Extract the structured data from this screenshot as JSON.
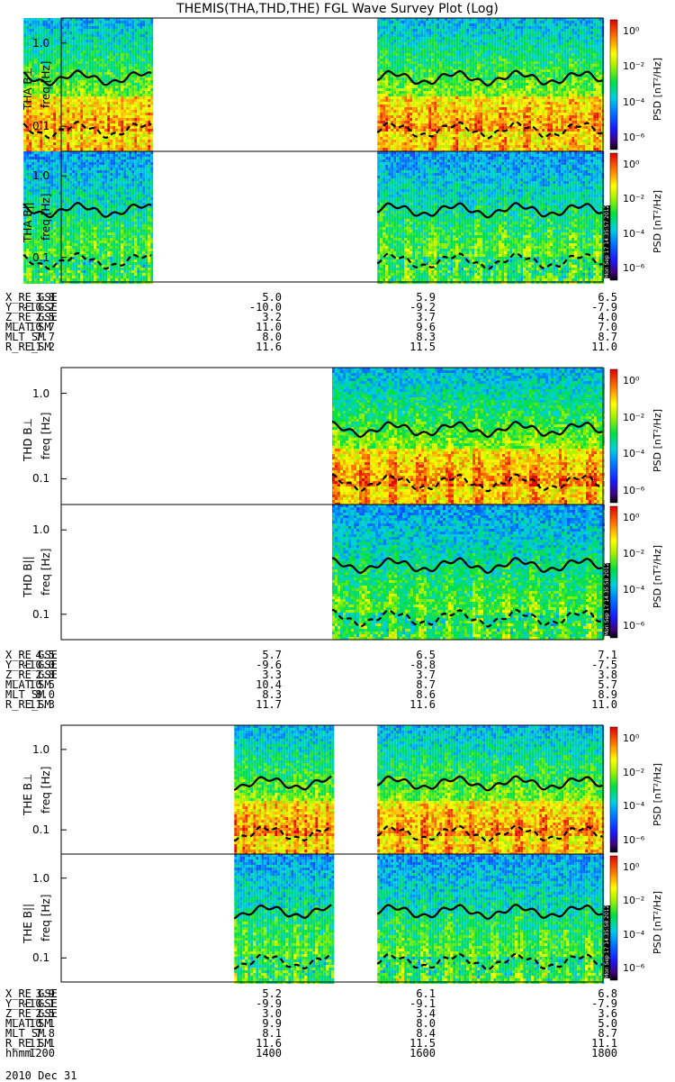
{
  "title": "THEMIS(THA,THD,THE) FGL Wave Survey Plot (Log)",
  "colorbar": {
    "label": "PSD [nT²/Hz]",
    "ticks": [
      "10⁰",
      "10⁻²",
      "10⁻⁴",
      "10⁻⁶"
    ]
  },
  "y_ticks": [
    "1.0",
    "0.1"
  ],
  "freq_label": "freq [Hz]",
  "stamps": [
    "Mon Sep 17 14:35:57 2012",
    "Mon Sep 17 14:35:58 2012",
    "Mon Sep 17 14:35:58 2012"
  ],
  "chart_data": [
    {
      "type": "heatmap",
      "probe": "THA",
      "panels": [
        {
          "ylabel": "THA B⊥",
          "data_segments": [
            [
              1135,
              1260
            ],
            [
              1530,
              1800
            ]
          ]
        },
        {
          "ylabel": "THA B||",
          "data_segments": [
            [
              1135,
              1260
            ],
            [
              1530,
              1800
            ]
          ]
        }
      ],
      "y_axis": {
        "label": "freq [Hz]",
        "scale": "log",
        "ticks": [
          1.0,
          0.1
        ]
      },
      "x_axis": {
        "label": "hhmm",
        "range": [
          1200,
          1800
        ]
      },
      "colorbar": {
        "label": "PSD [nT^2/Hz]",
        "scale": "log",
        "range": [
          1e-07,
          10
        ]
      },
      "ephemeris": {
        "labels": [
          "X_RE_GSE",
          "Y_RE_GSE",
          "Z_RE_GSE",
          "MLAT_SM",
          "MLT_SM",
          "R_RE_SM"
        ],
        "columns": [
          [
            "3.8",
            "-10.2",
            "2.5",
            "10.7",
            "7.7",
            "11.2"
          ],
          [
            "5.0",
            "-10.0",
            "3.2",
            "11.0",
            "8.0",
            "11.6"
          ],
          [
            "5.9",
            "-9.2",
            "3.7",
            "9.6",
            "8.3",
            "11.5"
          ],
          [
            "6.5",
            "-7.9",
            "4.0",
            "7.0",
            "8.7",
            "11.0"
          ]
        ]
      }
    },
    {
      "type": "heatmap",
      "probe": "THD",
      "panels": [
        {
          "ylabel": "THD B⊥",
          "data_segments": [
            [
              1460,
              1800
            ]
          ]
        },
        {
          "ylabel": "THD B||",
          "data_segments": [
            [
              1460,
              1800
            ]
          ]
        }
      ],
      "y_axis": {
        "label": "freq [Hz]",
        "scale": "log",
        "ticks": [
          1.0,
          0.1
        ]
      },
      "x_axis": {
        "label": "hhmm",
        "range": [
          1200,
          1800
        ]
      },
      "colorbar": {
        "label": "PSD [nT^2/Hz]",
        "scale": "log",
        "range": [
          1e-07,
          10
        ]
      },
      "ephemeris": {
        "labels": [
          "X_RE_GSE",
          "Y_RE_GSE",
          "Z_RE_GSE",
          "MLAT_SM",
          "MLT_SM",
          "R_RE_SM"
        ],
        "columns": [
          [
            "4.5",
            "-10.0",
            "2.8",
            "10.5",
            "8.0",
            "11.3"
          ],
          [
            "5.7",
            "-9.6",
            "3.3",
            "10.4",
            "8.3",
            "11.7"
          ],
          [
            "6.5",
            "-8.8",
            "3.7",
            "8.7",
            "8.6",
            "11.6"
          ],
          [
            "7.1",
            "-7.5",
            "3.8",
            "5.7",
            "8.9",
            "11.0"
          ]
        ]
      }
    },
    {
      "type": "heatmap",
      "probe": "THE",
      "panels": [
        {
          "ylabel": "THE B⊥",
          "data_segments": [
            [
              1355,
              1460
            ],
            [
              1530,
              1800
            ]
          ]
        },
        {
          "ylabel": "THE B||",
          "data_segments": [
            [
              1355,
              1460
            ],
            [
              1530,
              1800
            ]
          ]
        }
      ],
      "y_axis": {
        "label": "freq [Hz]",
        "scale": "log",
        "ticks": [
          1.0,
          0.1
        ]
      },
      "x_axis": {
        "label": "hhmm",
        "range": [
          1200,
          1800
        ]
      },
      "colorbar": {
        "label": "PSD [nT^2/Hz]",
        "scale": "log",
        "range": [
          1e-07,
          10
        ]
      },
      "ephemeris": {
        "labels": [
          "X_RE_GSE",
          "Y_RE_GSE",
          "Z_RE_GSE",
          "MLAT_SM",
          "MLT_SM",
          "R_RE_SM",
          "hhmm"
        ],
        "columns": [
          [
            "3.9",
            "-10.1",
            "2.5",
            "10.1",
            "7.8",
            "11.1",
            "1200"
          ],
          [
            "5.2",
            "-9.9",
            "3.0",
            "9.9",
            "8.1",
            "11.6",
            "1400"
          ],
          [
            "6.1",
            "-9.1",
            "3.4",
            "8.0",
            "8.4",
            "11.5",
            "1600"
          ],
          [
            "6.8",
            "-7.9",
            "3.6",
            "5.0",
            "8.7",
            "11.1",
            "1800"
          ]
        ]
      }
    }
  ],
  "date": "2010 Dec 31"
}
